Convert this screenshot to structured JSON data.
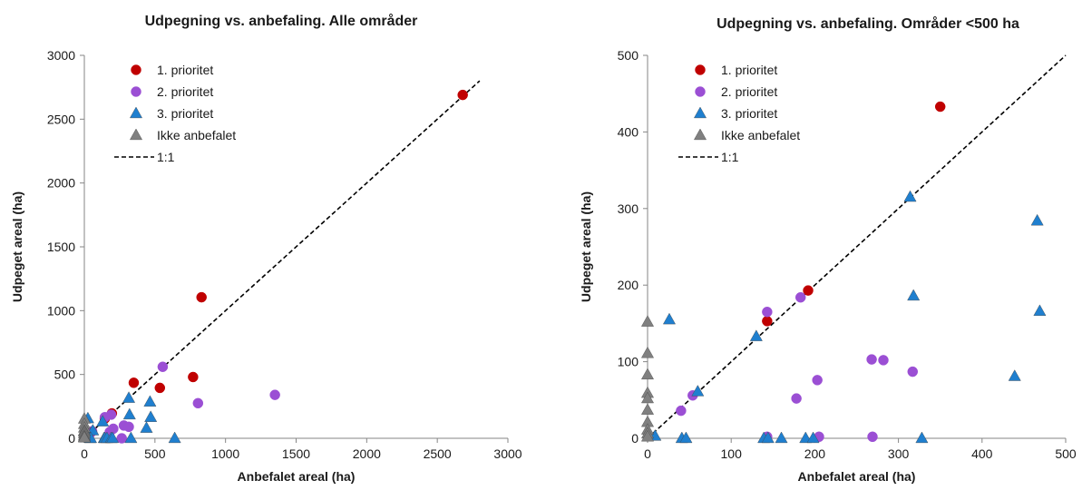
{
  "chart_data": [
    {
      "type": "scatter",
      "title": "Udpegning vs. anbefaling. Alle områder",
      "xlabel": "Anbefalet areal (ha)",
      "ylabel": "Udpeget areal (ha)",
      "xlim": [
        0,
        3000
      ],
      "ylim": [
        0,
        3000
      ],
      "xticks": [
        "0",
        "500",
        "1000",
        "1500",
        "2000",
        "2500",
        "3000"
      ],
      "yticks": [
        "0",
        "500",
        "1000",
        "1500",
        "2000",
        "2500",
        "3000"
      ],
      "grid": false,
      "legend_position": "top-left",
      "reference_line": {
        "name": "1:1",
        "x": [
          0,
          2800
        ],
        "y": [
          0,
          2800
        ]
      },
      "series": [
        {
          "name": "1. prioritet",
          "marker": "circle",
          "color": "#c00000",
          "points": [
            [
              2680,
              2690
            ],
            [
              830,
              1105
            ],
            [
              770,
              480
            ],
            [
              350,
              435
            ],
            [
              535,
              395
            ],
            [
              195,
              195
            ],
            [
              145,
              155
            ]
          ]
        },
        {
          "name": "2. prioritet",
          "marker": "circle",
          "color": "#9b4fd4",
          "points": [
            [
              555,
              560
            ],
            [
              1350,
              340
            ],
            [
              805,
              275
            ],
            [
              190,
              185
            ],
            [
              145,
              165
            ],
            [
              280,
              100
            ],
            [
              315,
              90
            ],
            [
              205,
              75
            ],
            [
              180,
              50
            ],
            [
              265,
              0
            ],
            [
              40,
              35
            ],
            [
              55,
              55
            ]
          ]
        },
        {
          "name": "3. prioritet",
          "marker": "triangle",
          "color": "#1f7fcf",
          "points": [
            [
              315,
              315
            ],
            [
              465,
              285
            ],
            [
              320,
              185
            ],
            [
              470,
              165
            ],
            [
              130,
              130
            ],
            [
              440,
              80
            ],
            [
              60,
              60
            ],
            [
              25,
              155
            ],
            [
              10,
              5
            ],
            [
              40,
              0
            ],
            [
              45,
              0
            ],
            [
              140,
              0
            ],
            [
              145,
              0
            ],
            [
              160,
              0
            ],
            [
              190,
              0
            ],
            [
              200,
              0
            ],
            [
              330,
              0
            ],
            [
              640,
              0
            ]
          ]
        },
        {
          "name": "Ikke anbefalet",
          "marker": "triangle",
          "color": "#808080",
          "points": [
            [
              0,
              152
            ],
            [
              0,
              110
            ],
            [
              0,
              82
            ],
            [
              0,
              58
            ],
            [
              0,
              50
            ],
            [
              0,
              36
            ],
            [
              0,
              20
            ],
            [
              0,
              10
            ],
            [
              0,
              5
            ]
          ]
        }
      ]
    },
    {
      "type": "scatter",
      "title": "Udpegning vs. anbefaling. Områder <500 ha",
      "xlabel": "Anbefalet areal (ha)",
      "ylabel": "Udpeget areal (ha)",
      "xlim": [
        0,
        500
      ],
      "ylim": [
        0,
        500
      ],
      "xticks": [
        "0",
        "100",
        "200",
        "300",
        "400",
        "500"
      ],
      "yticks": [
        "0",
        "100",
        "200",
        "300",
        "400",
        "500"
      ],
      "grid": false,
      "legend_position": "top-left",
      "reference_line": {
        "name": "1:1",
        "x": [
          0,
          500
        ],
        "y": [
          0,
          500
        ]
      },
      "series": [
        {
          "name": "1. prioritet",
          "marker": "circle",
          "color": "#c00000",
          "points": [
            [
              350,
              433
            ],
            [
              192,
              193
            ],
            [
              143,
              153
            ]
          ]
        },
        {
          "name": "2. prioritet",
          "marker": "circle",
          "color": "#9b4fd4",
          "points": [
            [
              143,
              165
            ],
            [
              183,
              184
            ],
            [
              268,
              103
            ],
            [
              282,
              102
            ],
            [
              317,
              87
            ],
            [
              203,
              76
            ],
            [
              178,
              52
            ],
            [
              54,
              56
            ],
            [
              40,
              36
            ],
            [
              143,
              2
            ],
            [
              205,
              2
            ],
            [
              269,
              2
            ]
          ]
        },
        {
          "name": "3. prioritet",
          "marker": "triangle",
          "color": "#1f7fcf",
          "points": [
            [
              314,
              315
            ],
            [
              466,
              284
            ],
            [
              318,
              186
            ],
            [
              469,
              166
            ],
            [
              130,
              133
            ],
            [
              439,
              81
            ],
            [
              60,
              61
            ],
            [
              26,
              155
            ],
            [
              9,
              3
            ],
            [
              41,
              0
            ],
            [
              46,
              0
            ],
            [
              139,
              0
            ],
            [
              144,
              0
            ],
            [
              160,
              0
            ],
            [
              189,
              0
            ],
            [
              198,
              0
            ],
            [
              328,
              0
            ]
          ]
        },
        {
          "name": "Ikke anbefalet",
          "marker": "triangle",
          "color": "#808080",
          "points": [
            [
              0,
              152
            ],
            [
              0,
              111
            ],
            [
              0,
              83
            ],
            [
              0,
              59
            ],
            [
              0,
              52
            ],
            [
              0,
              37
            ],
            [
              0,
              21
            ],
            [
              0,
              11
            ],
            [
              0,
              6
            ],
            [
              0,
              2
            ]
          ]
        }
      ]
    }
  ]
}
